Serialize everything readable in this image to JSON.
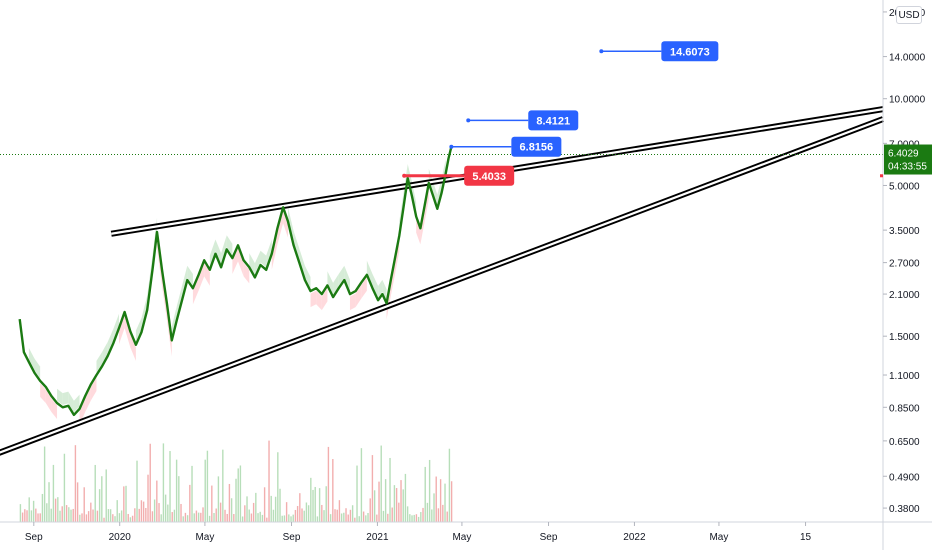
{
  "chart_data": {
    "type": "line",
    "y_scale": "log",
    "ylim": [
      0.34,
      22
    ],
    "currency": "USD",
    "y_ticks": [
      {
        "value": 0.38,
        "label": "0.3800"
      },
      {
        "value": 0.49,
        "label": "0.4900"
      },
      {
        "value": 0.65,
        "label": "0.6500"
      },
      {
        "value": 0.85,
        "label": "0.8500"
      },
      {
        "value": 1.1,
        "label": "1.1000"
      },
      {
        "value": 1.5,
        "label": "1.5000"
      },
      {
        "value": 2.1,
        "label": "2.1000"
      },
      {
        "value": 2.7,
        "label": "2.7000"
      },
      {
        "value": 3.5,
        "label": "3.5000"
      },
      {
        "value": 5.0,
        "label": "5.0000"
      },
      {
        "value": 7.0,
        "label": "7.0000"
      },
      {
        "value": 10.0,
        "label": "10.0000"
      },
      {
        "value": 14.0,
        "label": "14.0000"
      },
      {
        "value": 20.0,
        "label": "20.0000"
      }
    ],
    "x_ticks": [
      {
        "date": "2019-09-01",
        "label": "Sep"
      },
      {
        "date": "2020-01-01",
        "label": "2020"
      },
      {
        "date": "2020-05-01",
        "label": "May"
      },
      {
        "date": "2020-09-01",
        "label": "Sep"
      },
      {
        "date": "2021-01-01",
        "label": "2021"
      },
      {
        "date": "2021-05-01",
        "label": "May"
      },
      {
        "date": "2021-09-01",
        "label": "Sep"
      },
      {
        "date": "2022-01-01",
        "label": "2022"
      },
      {
        "date": "2022-05-01",
        "label": "May"
      },
      {
        "date": "2022-09-01",
        "label": "15"
      }
    ],
    "x_range": [
      "2019-07-15",
      "2022-12-20"
    ],
    "series": [
      {
        "color": "#1b7a12",
        "points": [
          [
            "2019-08-12",
            1.72
          ],
          [
            "2019-08-18",
            1.32
          ],
          [
            "2019-08-25",
            1.22
          ],
          [
            "2019-09-02",
            1.12
          ],
          [
            "2019-09-10",
            1.05
          ],
          [
            "2019-09-18",
            1.0
          ],
          [
            "2019-09-26",
            0.93
          ],
          [
            "2019-10-04",
            0.88
          ],
          [
            "2019-10-12",
            0.85
          ],
          [
            "2019-10-20",
            0.86
          ],
          [
            "2019-10-28",
            0.8
          ],
          [
            "2019-11-05",
            0.84
          ],
          [
            "2019-11-13",
            0.93
          ],
          [
            "2019-11-21",
            1.02
          ],
          [
            "2019-11-29",
            1.1
          ],
          [
            "2019-12-07",
            1.18
          ],
          [
            "2019-12-15",
            1.28
          ],
          [
            "2019-12-23",
            1.42
          ],
          [
            "2019-12-31",
            1.6
          ],
          [
            "2020-01-08",
            1.82
          ],
          [
            "2020-01-16",
            1.56
          ],
          [
            "2020-01-24",
            1.4
          ],
          [
            "2020-02-01",
            1.55
          ],
          [
            "2020-02-09",
            1.85
          ],
          [
            "2020-02-17",
            2.6
          ],
          [
            "2020-02-23",
            3.45
          ],
          [
            "2020-03-01",
            2.55
          ],
          [
            "2020-03-08",
            1.95
          ],
          [
            "2020-03-15",
            1.45
          ],
          [
            "2020-03-22",
            1.7
          ],
          [
            "2020-03-29",
            1.98
          ],
          [
            "2020-04-06",
            2.35
          ],
          [
            "2020-04-14",
            2.2
          ],
          [
            "2020-04-22",
            2.45
          ],
          [
            "2020-04-30",
            2.75
          ],
          [
            "2020-05-08",
            2.55
          ],
          [
            "2020-05-16",
            2.9
          ],
          [
            "2020-05-24",
            2.6
          ],
          [
            "2020-06-01",
            3.0
          ],
          [
            "2020-06-09",
            2.8
          ],
          [
            "2020-06-17",
            3.1
          ],
          [
            "2020-06-25",
            2.75
          ],
          [
            "2020-07-03",
            2.6
          ],
          [
            "2020-07-11",
            2.4
          ],
          [
            "2020-07-19",
            2.65
          ],
          [
            "2020-07-27",
            2.55
          ],
          [
            "2020-08-04",
            2.9
          ],
          [
            "2020-08-12",
            3.55
          ],
          [
            "2020-08-20",
            4.2
          ],
          [
            "2020-08-27",
            3.75
          ],
          [
            "2020-09-04",
            3.1
          ],
          [
            "2020-09-12",
            2.7
          ],
          [
            "2020-09-20",
            2.35
          ],
          [
            "2020-09-28",
            2.15
          ],
          [
            "2020-10-06",
            2.2
          ],
          [
            "2020-10-14",
            2.1
          ],
          [
            "2020-10-22",
            2.25
          ],
          [
            "2020-10-30",
            2.05
          ],
          [
            "2020-11-07",
            2.2
          ],
          [
            "2020-11-15",
            2.35
          ],
          [
            "2020-11-23",
            2.1
          ],
          [
            "2020-12-01",
            2.15
          ],
          [
            "2020-12-09",
            2.3
          ],
          [
            "2020-12-17",
            2.45
          ],
          [
            "2020-12-25",
            2.2
          ],
          [
            "2021-01-02",
            2.0
          ],
          [
            "2021-01-08",
            2.1
          ],
          [
            "2021-01-14",
            1.95
          ],
          [
            "2021-01-20",
            2.35
          ],
          [
            "2021-01-26",
            2.8
          ],
          [
            "2021-02-01",
            3.35
          ],
          [
            "2021-02-07",
            4.2
          ],
          [
            "2021-02-13",
            5.3
          ],
          [
            "2021-02-19",
            4.6
          ],
          [
            "2021-02-25",
            3.9
          ],
          [
            "2021-03-03",
            3.55
          ],
          [
            "2021-03-09",
            4.25
          ],
          [
            "2021-03-15",
            5.1
          ],
          [
            "2021-03-21",
            4.6
          ],
          [
            "2021-03-27",
            4.15
          ],
          [
            "2021-04-02",
            4.7
          ],
          [
            "2021-04-08",
            5.5
          ],
          [
            "2021-04-12",
            6.2
          ],
          [
            "2021-04-16",
            6.82
          ]
        ]
      }
    ],
    "price_tags": [
      {
        "label": "14.6073",
        "value": 14.6073,
        "color": "#2962ff",
        "start": "2021-11-15"
      },
      {
        "label": "8.4121",
        "value": 8.4121,
        "color": "#2962ff",
        "start": "2021-05-10"
      },
      {
        "label": "6.8156",
        "value": 6.8156,
        "color": "#2962ff",
        "start": "2021-04-16"
      },
      {
        "label": "5.4033",
        "value": 5.4033,
        "color": "#f23645",
        "start": "2021-02-08"
      }
    ],
    "trendlines": [
      {
        "name": "upper",
        "from": [
          "2019-12-20",
          3.4
        ],
        "to": [
          "2022-12-20",
          9.2
        ]
      },
      {
        "name": "lower",
        "from": [
          "2019-06-10",
          0.55
        ],
        "to": [
          "2022-12-20",
          8.5
        ]
      }
    ],
    "last_price": {
      "value": 6.4029,
      "label": "6.4029",
      "countdown": "04:33:55",
      "color": "#1b7a12"
    }
  },
  "ui": {
    "currency_label": "USD"
  }
}
